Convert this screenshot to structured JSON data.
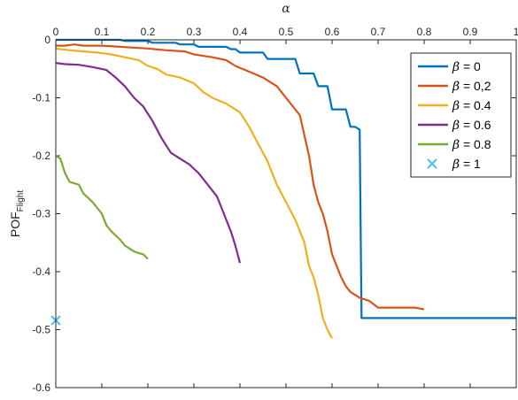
{
  "chart_data": {
    "type": "line",
    "title": "",
    "xlabel": "α",
    "ylabel": "POF",
    "ylabel_subscript": "Flight",
    "xlim": [
      0,
      1
    ],
    "ylim": [
      -0.6,
      0
    ],
    "x_ticks": [
      0,
      0.1,
      0.2,
      0.3,
      0.4,
      0.5,
      0.6,
      0.7,
      0.8,
      0.9,
      1
    ],
    "x_tick_labels": [
      "0",
      "0.1",
      "0.2",
      "0.3",
      "0.4",
      "0.5",
      "0.6",
      "0.7",
      "0.8",
      "0.9",
      "1"
    ],
    "y_ticks": [
      0,
      -0.1,
      -0.2,
      -0.3,
      -0.4,
      -0.5,
      -0.6
    ],
    "y_tick_labels": [
      "0",
      "-0.1",
      "-0.2",
      "-0.3",
      "-0.4",
      "-0.5",
      "-0.6"
    ],
    "x_axis_position": "top",
    "legend_position": "top-right",
    "grid": false,
    "series": [
      {
        "name": "β = 0",
        "legend_greek": "β",
        "legend_value": " = 0",
        "color": "#0072BD",
        "marker": "line",
        "x": [
          0,
          0.14,
          0.15,
          0.2,
          0.21,
          0.26,
          0.27,
          0.3,
          0.31,
          0.37,
          0.38,
          0.39,
          0.4,
          0.45,
          0.46,
          0.52,
          0.53,
          0.56,
          0.57,
          0.59,
          0.6,
          0.63,
          0.64,
          0.65,
          0.66,
          0.664,
          1
        ],
        "y": [
          0,
          0,
          -0.002,
          -0.002,
          -0.005,
          -0.005,
          -0.008,
          -0.008,
          -0.012,
          -0.012,
          -0.016,
          -0.016,
          -0.022,
          -0.022,
          -0.033,
          -0.033,
          -0.058,
          -0.058,
          -0.08,
          -0.08,
          -0.12,
          -0.12,
          -0.15,
          -0.15,
          -0.155,
          -0.48,
          -0.48
        ]
      },
      {
        "name": "β = 0,2",
        "legend_greek": "β",
        "legend_value": " = 0,2",
        "color": "#D95319",
        "marker": "line",
        "x": [
          0,
          0.02,
          0.04,
          0.06,
          0.1,
          0.14,
          0.18,
          0.2,
          0.24,
          0.28,
          0.3,
          0.34,
          0.37,
          0.39,
          0.42,
          0.45,
          0.48,
          0.5,
          0.53,
          0.55,
          0.56,
          0.57,
          0.58,
          0.59,
          0.6,
          0.61,
          0.62,
          0.63,
          0.64,
          0.65,
          0.66,
          0.68,
          0.7,
          0.76,
          0.78,
          0.8
        ],
        "y": [
          -0.01,
          -0.01,
          -0.008,
          -0.01,
          -0.01,
          -0.012,
          -0.014,
          -0.015,
          -0.018,
          -0.02,
          -0.025,
          -0.03,
          -0.035,
          -0.045,
          -0.055,
          -0.065,
          -0.08,
          -0.1,
          -0.13,
          -0.2,
          -0.25,
          -0.28,
          -0.3,
          -0.33,
          -0.37,
          -0.39,
          -0.41,
          -0.425,
          -0.435,
          -0.44,
          -0.445,
          -0.45,
          -0.462,
          -0.462,
          -0.462,
          -0.465
        ]
      },
      {
        "name": "β = 0.4",
        "legend_greek": "β",
        "legend_value": " = 0.4",
        "color": "#EDB120",
        "marker": "line",
        "x": [
          0,
          0.03,
          0.06,
          0.09,
          0.12,
          0.15,
          0.18,
          0.2,
          0.22,
          0.24,
          0.27,
          0.3,
          0.32,
          0.34,
          0.37,
          0.4,
          0.42,
          0.44,
          0.46,
          0.48,
          0.5,
          0.52,
          0.54,
          0.55,
          0.56,
          0.57,
          0.58,
          0.59,
          0.6
        ],
        "y": [
          -0.015,
          -0.018,
          -0.02,
          -0.022,
          -0.025,
          -0.03,
          -0.035,
          -0.045,
          -0.05,
          -0.06,
          -0.065,
          -0.075,
          -0.09,
          -0.1,
          -0.11,
          -0.125,
          -0.15,
          -0.18,
          -0.21,
          -0.25,
          -0.28,
          -0.31,
          -0.35,
          -0.39,
          -0.41,
          -0.44,
          -0.48,
          -0.5,
          -0.515
        ]
      },
      {
        "name": "β = 0.6",
        "legend_greek": "β",
        "legend_value": " = 0.6",
        "color": "#7E2F8E",
        "marker": "line",
        "x": [
          0,
          0.02,
          0.05,
          0.08,
          0.11,
          0.13,
          0.15,
          0.17,
          0.19,
          0.21,
          0.23,
          0.25,
          0.27,
          0.29,
          0.31,
          0.33,
          0.35,
          0.36,
          0.37,
          0.38,
          0.39,
          0.4
        ],
        "y": [
          -0.04,
          -0.042,
          -0.043,
          -0.047,
          -0.052,
          -0.065,
          -0.08,
          -0.1,
          -0.115,
          -0.14,
          -0.17,
          -0.195,
          -0.205,
          -0.215,
          -0.23,
          -0.25,
          -0.27,
          -0.29,
          -0.31,
          -0.33,
          -0.355,
          -0.385
        ]
      },
      {
        "name": "β = 0.8",
        "legend_greek": "β",
        "legend_value": " = 0.8",
        "color": "#77AC30",
        "marker": "line",
        "x": [
          0,
          0.01,
          0.02,
          0.03,
          0.05,
          0.06,
          0.08,
          0.1,
          0.11,
          0.12,
          0.14,
          0.15,
          0.16,
          0.17,
          0.18,
          0.19,
          0.2
        ],
        "y": [
          -0.2,
          -0.205,
          -0.23,
          -0.245,
          -0.25,
          -0.265,
          -0.28,
          -0.3,
          -0.32,
          -0.33,
          -0.345,
          -0.355,
          -0.36,
          -0.365,
          -0.368,
          -0.37,
          -0.378
        ]
      },
      {
        "name": "β = 1",
        "legend_greek": "β",
        "legend_value": " = 1",
        "color": "#4DBEEE",
        "marker": "x",
        "x": [
          0
        ],
        "y": [
          -0.484
        ]
      }
    ]
  }
}
